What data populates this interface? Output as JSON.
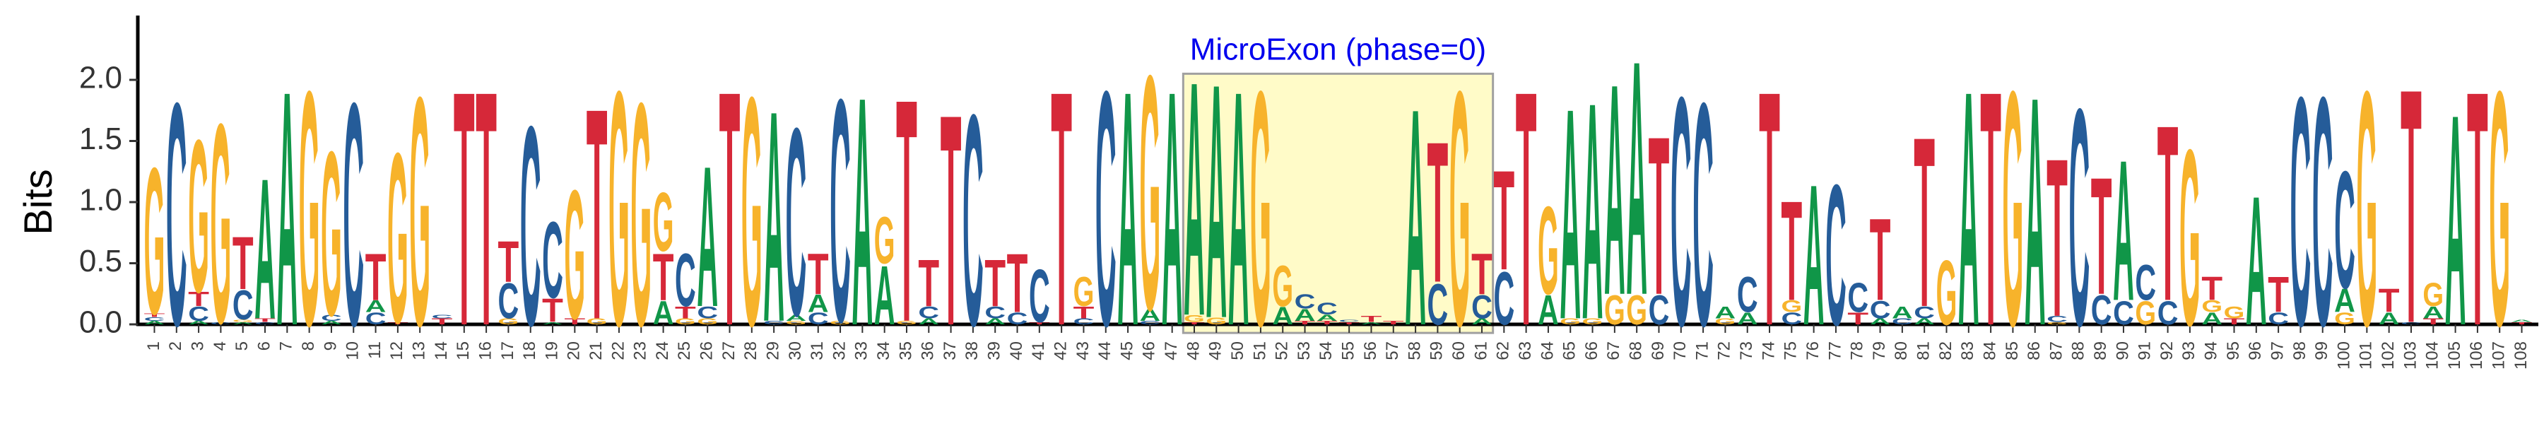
{
  "chart_data": {
    "type": "sequence-logo",
    "ylabel": "Bits",
    "ylim": [
      0,
      2.4
    ],
    "yticks": [
      "0.0",
      "0.5",
      "1.0",
      "1.5",
      "2.0"
    ],
    "colors": {
      "A": "#109648",
      "C": "#255C99",
      "G": "#F7B32B",
      "T": "#D62839"
    },
    "annotation": {
      "label": "MicroExon (phase=0)",
      "start": 48,
      "end": 61,
      "color": "#0000EE",
      "fill": "#FFFBC8",
      "border": "#A0A0A0"
    },
    "positions": [
      {
        "pos": "1",
        "letters": [
          [
            "A",
            0.03
          ],
          [
            "C",
            0.03
          ],
          [
            "T",
            0.03
          ],
          [
            "G",
            1.25
          ]
        ]
      },
      {
        "pos": "2",
        "letters": [
          [
            "C",
            1.9
          ]
        ]
      },
      {
        "pos": "3",
        "letters": [
          [
            "A",
            0.03
          ],
          [
            "C",
            0.12
          ],
          [
            "T",
            0.12
          ],
          [
            "G",
            1.3
          ]
        ]
      },
      {
        "pos": "4",
        "letters": [
          [
            "C",
            0.02
          ],
          [
            "G",
            1.7
          ]
        ]
      },
      {
        "pos": "5",
        "letters": [
          [
            "A",
            0.02
          ],
          [
            "G",
            0.02
          ],
          [
            "C",
            0.25
          ],
          [
            "T",
            0.45
          ]
        ]
      },
      {
        "pos": "6",
        "letters": [
          [
            "C",
            0.02
          ],
          [
            "T",
            0.03
          ],
          [
            "A",
            1.2
          ]
        ]
      },
      {
        "pos": "7",
        "letters": [
          [
            "A",
            2.0
          ]
        ]
      },
      {
        "pos": "8",
        "letters": [
          [
            "G",
            2.0
          ]
        ]
      },
      {
        "pos": "9",
        "letters": [
          [
            "A",
            0.03
          ],
          [
            "C",
            0.05
          ],
          [
            "G",
            1.4
          ]
        ]
      },
      {
        "pos": "10",
        "letters": [
          [
            "C",
            1.9
          ]
        ]
      },
      {
        "pos": "11",
        "letters": [
          [
            "C",
            0.1
          ],
          [
            "A",
            0.1
          ],
          [
            "T",
            0.4
          ]
        ]
      },
      {
        "pos": "12",
        "letters": [
          [
            "T",
            0.02
          ],
          [
            "G",
            1.45
          ]
        ]
      },
      {
        "pos": "13",
        "letters": [
          [
            "G",
            1.95
          ]
        ]
      },
      {
        "pos": "14",
        "letters": [
          [
            "T",
            0.05
          ],
          [
            "C",
            0.03
          ]
        ]
      },
      {
        "pos": "15",
        "letters": [
          [
            "T",
            2.0
          ]
        ]
      },
      {
        "pos": "16",
        "letters": [
          [
            "T",
            2.0
          ]
        ]
      },
      {
        "pos": "17",
        "letters": [
          [
            "G",
            0.05
          ],
          [
            "C",
            0.3
          ],
          [
            "T",
            0.35
          ]
        ]
      },
      {
        "pos": "18",
        "letters": [
          [
            "C",
            1.7
          ]
        ]
      },
      {
        "pos": "19",
        "letters": [
          [
            "A",
            0.02
          ],
          [
            "T",
            0.2
          ],
          [
            "C",
            0.65
          ]
        ]
      },
      {
        "pos": "20",
        "letters": [
          [
            "T",
            0.05
          ],
          [
            "G",
            1.1
          ]
        ]
      },
      {
        "pos": "21",
        "letters": [
          [
            "G",
            0.05
          ],
          [
            "T",
            1.8
          ]
        ]
      },
      {
        "pos": "22",
        "letters": [
          [
            "G",
            2.0
          ]
        ]
      },
      {
        "pos": "23",
        "letters": [
          [
            "G",
            1.9
          ]
        ]
      },
      {
        "pos": "24",
        "letters": [
          [
            "A",
            0.2
          ],
          [
            "T",
            0.4
          ],
          [
            "G",
            0.5
          ]
        ]
      },
      {
        "pos": "25",
        "letters": [
          [
            "G",
            0.05
          ],
          [
            "T",
            0.1
          ],
          [
            "C",
            0.45
          ]
        ]
      },
      {
        "pos": "26",
        "letters": [
          [
            "G",
            0.05
          ],
          [
            "C",
            0.1
          ],
          [
            "A",
            1.2
          ]
        ]
      },
      {
        "pos": "27",
        "letters": [
          [
            "T",
            2.0
          ]
        ]
      },
      {
        "pos": "28",
        "letters": [
          [
            "G",
            1.95
          ]
        ]
      },
      {
        "pos": "29",
        "letters": [
          [
            "C",
            0.03
          ],
          [
            "A",
            1.8
          ]
        ]
      },
      {
        "pos": "30",
        "letters": [
          [
            "G",
            0.03
          ],
          [
            "A",
            0.05
          ],
          [
            "C",
            1.6
          ]
        ]
      },
      {
        "pos": "31",
        "letters": [
          [
            "C",
            0.1
          ],
          [
            "A",
            0.15
          ],
          [
            "T",
            0.35
          ]
        ]
      },
      {
        "pos": "32",
        "letters": [
          [
            "G",
            0.03
          ],
          [
            "C",
            1.9
          ]
        ]
      },
      {
        "pos": "33",
        "letters": [
          [
            "A",
            1.95
          ]
        ]
      },
      {
        "pos": "34",
        "letters": [
          [
            "A",
            0.5
          ],
          [
            "G",
            0.4
          ]
        ]
      },
      {
        "pos": "35",
        "letters": [
          [
            "G",
            0.03
          ],
          [
            "T",
            1.9
          ]
        ]
      },
      {
        "pos": "36",
        "letters": [
          [
            "A",
            0.05
          ],
          [
            "C",
            0.1
          ],
          [
            "T",
            0.4
          ]
        ]
      },
      {
        "pos": "37",
        "letters": [
          [
            "T",
            1.8
          ]
        ]
      },
      {
        "pos": "38",
        "letters": [
          [
            "C",
            1.8
          ]
        ]
      },
      {
        "pos": "39",
        "letters": [
          [
            "A",
            0.05
          ],
          [
            "C",
            0.1
          ],
          [
            "T",
            0.4
          ]
        ]
      },
      {
        "pos": "40",
        "letters": [
          [
            "C",
            0.1
          ],
          [
            "T",
            0.5
          ]
        ]
      },
      {
        "pos": "41",
        "letters": [
          [
            "T",
            0.02
          ],
          [
            "C",
            0.45
          ]
        ]
      },
      {
        "pos": "42",
        "letters": [
          [
            "T",
            2.0
          ]
        ]
      },
      {
        "pos": "43",
        "letters": [
          [
            "C",
            0.05
          ],
          [
            "T",
            0.1
          ],
          [
            "G",
            0.25
          ]
        ]
      },
      {
        "pos": "44",
        "letters": [
          [
            "C",
            2.0
          ]
        ]
      },
      {
        "pos": "45",
        "letters": [
          [
            "A",
            2.0
          ]
        ]
      },
      {
        "pos": "46",
        "letters": [
          [
            "C",
            0.03
          ],
          [
            "A",
            0.1
          ],
          [
            "G",
            2.0
          ]
        ]
      },
      {
        "pos": "47",
        "letters": [
          [
            "A",
            2.0
          ]
        ]
      },
      {
        "pos": "48",
        "letters": [
          [
            "T",
            0.02
          ],
          [
            "G",
            0.06
          ],
          [
            "A",
            2.0
          ]
        ]
      },
      {
        "pos": "49",
        "letters": [
          [
            "G",
            0.06
          ],
          [
            "A",
            2.0
          ]
        ]
      },
      {
        "pos": "50",
        "letters": [
          [
            "A",
            2.0
          ]
        ]
      },
      {
        "pos": "51",
        "letters": [
          [
            "G",
            2.0
          ]
        ]
      },
      {
        "pos": "52",
        "letters": [
          [
            "A",
            0.15
          ],
          [
            "G",
            0.35
          ]
        ]
      },
      {
        "pos": "53",
        "letters": [
          [
            "T",
            0.03
          ],
          [
            "A",
            0.1
          ],
          [
            "C",
            0.12
          ]
        ]
      },
      {
        "pos": "54",
        "letters": [
          [
            "T",
            0.03
          ],
          [
            "A",
            0.05
          ],
          [
            "C",
            0.1
          ]
        ]
      },
      {
        "pos": "55",
        "letters": [
          [
            "T",
            0.02
          ],
          [
            "C",
            0.02
          ]
        ]
      },
      {
        "pos": "56",
        "letters": [
          [
            "A",
            0.02
          ],
          [
            "T",
            0.05
          ]
        ]
      },
      {
        "pos": "57",
        "letters": [
          [
            "T",
            0.03
          ]
        ]
      },
      {
        "pos": "58",
        "letters": [
          [
            "A",
            1.85
          ]
        ]
      },
      {
        "pos": "59",
        "letters": [
          [
            "C",
            0.35
          ],
          [
            "T",
            1.2
          ]
        ]
      },
      {
        "pos": "60",
        "letters": [
          [
            "G",
            2.0
          ]
        ]
      },
      {
        "pos": "61",
        "letters": [
          [
            "A",
            0.05
          ],
          [
            "C",
            0.2
          ],
          [
            "T",
            0.35
          ]
        ]
      },
      {
        "pos": "62",
        "letters": [
          [
            "C",
            0.45
          ],
          [
            "T",
            0.85
          ]
        ]
      },
      {
        "pos": "63",
        "letters": [
          [
            "T",
            2.0
          ]
        ]
      },
      {
        "pos": "64",
        "letters": [
          [
            "A",
            0.25
          ],
          [
            "G",
            0.75
          ]
        ]
      },
      {
        "pos": "65",
        "letters": [
          [
            "G",
            0.05
          ],
          [
            "A",
            1.8
          ]
        ]
      },
      {
        "pos": "66",
        "letters": [
          [
            "G",
            0.05
          ],
          [
            "A",
            1.85
          ]
        ]
      },
      {
        "pos": "67",
        "letters": [
          [
            "G",
            0.25
          ],
          [
            "A",
            1.8
          ]
        ]
      },
      {
        "pos": "68",
        "letters": [
          [
            "G",
            0.25
          ],
          [
            "A",
            2.0
          ]
        ]
      },
      {
        "pos": "69",
        "letters": [
          [
            "C",
            0.25
          ],
          [
            "T",
            1.35
          ]
        ]
      },
      {
        "pos": "70",
        "letters": [
          [
            "C",
            1.95
          ]
        ]
      },
      {
        "pos": "71",
        "letters": [
          [
            "C",
            1.9
          ]
        ]
      },
      {
        "pos": "72",
        "letters": [
          [
            "G",
            0.05
          ],
          [
            "A",
            0.1
          ]
        ]
      },
      {
        "pos": "73",
        "letters": [
          [
            "A",
            0.1
          ],
          [
            "C",
            0.3
          ]
        ]
      },
      {
        "pos": "74",
        "letters": [
          [
            "T",
            2.0
          ]
        ]
      },
      {
        "pos": "75",
        "letters": [
          [
            "C",
            0.1
          ],
          [
            "G",
            0.1
          ],
          [
            "T",
            0.85
          ]
        ]
      },
      {
        "pos": "76",
        "letters": [
          [
            "A",
            1.2
          ]
        ]
      },
      {
        "pos": "77",
        "letters": [
          [
            "C",
            1.2
          ]
        ]
      },
      {
        "pos": "78",
        "letters": [
          [
            "T",
            0.1
          ],
          [
            "C",
            0.25
          ]
        ]
      },
      {
        "pos": "79",
        "letters": [
          [
            "A",
            0.05
          ],
          [
            "C",
            0.15
          ],
          [
            "T",
            0.7
          ]
        ]
      },
      {
        "pos": "80",
        "letters": [
          [
            "C",
            0.05
          ],
          [
            "A",
            0.1
          ]
        ]
      },
      {
        "pos": "81",
        "letters": [
          [
            "A",
            0.05
          ],
          [
            "C",
            0.1
          ],
          [
            "T",
            1.45
          ]
        ]
      },
      {
        "pos": "82",
        "letters": [
          [
            "G",
            0.55
          ]
        ]
      },
      {
        "pos": "83",
        "letters": [
          [
            "A",
            2.0
          ]
        ]
      },
      {
        "pos": "84",
        "letters": [
          [
            "T",
            2.0
          ]
        ]
      },
      {
        "pos": "85",
        "letters": [
          [
            "G",
            2.0
          ]
        ]
      },
      {
        "pos": "86",
        "letters": [
          [
            "A",
            1.95
          ]
        ]
      },
      {
        "pos": "87",
        "letters": [
          [
            "G",
            0.02
          ],
          [
            "C",
            0.05
          ],
          [
            "T",
            1.35
          ]
        ]
      },
      {
        "pos": "88",
        "letters": [
          [
            "C",
            1.85
          ]
        ]
      },
      {
        "pos": "89",
        "letters": [
          [
            "C",
            0.25
          ],
          [
            "T",
            1.0
          ]
        ]
      },
      {
        "pos": "90",
        "letters": [
          [
            "C",
            0.2
          ],
          [
            "A",
            1.2
          ]
        ]
      },
      {
        "pos": "91",
        "letters": [
          [
            "G",
            0.2
          ],
          [
            "C",
            0.3
          ]
        ]
      },
      {
        "pos": "92",
        "letters": [
          [
            "C",
            0.2
          ],
          [
            "T",
            1.5
          ]
        ]
      },
      {
        "pos": "93",
        "letters": [
          [
            "G",
            1.5
          ]
        ]
      },
      {
        "pos": "94",
        "letters": [
          [
            "A",
            0.1
          ],
          [
            "G",
            0.1
          ],
          [
            "T",
            0.2
          ]
        ]
      },
      {
        "pos": "95",
        "letters": [
          [
            "T",
            0.05
          ],
          [
            "G",
            0.1
          ]
        ]
      },
      {
        "pos": "96",
        "letters": [
          [
            "A",
            1.1
          ]
        ]
      },
      {
        "pos": "97",
        "letters": [
          [
            "C",
            0.1
          ],
          [
            "T",
            0.3
          ]
        ]
      },
      {
        "pos": "98",
        "letters": [
          [
            "C",
            1.95
          ]
        ]
      },
      {
        "pos": "99",
        "letters": [
          [
            "C",
            1.95
          ]
        ]
      },
      {
        "pos": "100",
        "letters": [
          [
            "G",
            0.1
          ],
          [
            "A",
            0.2
          ],
          [
            "C",
            1.0
          ]
        ]
      },
      {
        "pos": "101",
        "letters": [
          [
            "G",
            2.0
          ]
        ]
      },
      {
        "pos": "102",
        "letters": [
          [
            "A",
            0.1
          ],
          [
            "T",
            0.2
          ]
        ]
      },
      {
        "pos": "103",
        "letters": [
          [
            "C",
            0.02
          ],
          [
            "T",
            2.0
          ]
        ]
      },
      {
        "pos": "104",
        "letters": [
          [
            "T",
            0.05
          ],
          [
            "A",
            0.1
          ],
          [
            "G",
            0.2
          ]
        ]
      },
      {
        "pos": "105",
        "letters": [
          [
            "A",
            1.8
          ]
        ]
      },
      {
        "pos": "106",
        "letters": [
          [
            "T",
            2.0
          ]
        ]
      },
      {
        "pos": "107",
        "letters": [
          [
            "G",
            2.0
          ]
        ]
      },
      {
        "pos": "108",
        "letters": [
          [
            "T",
            0.02
          ],
          [
            "A",
            0.02
          ]
        ]
      }
    ]
  }
}
